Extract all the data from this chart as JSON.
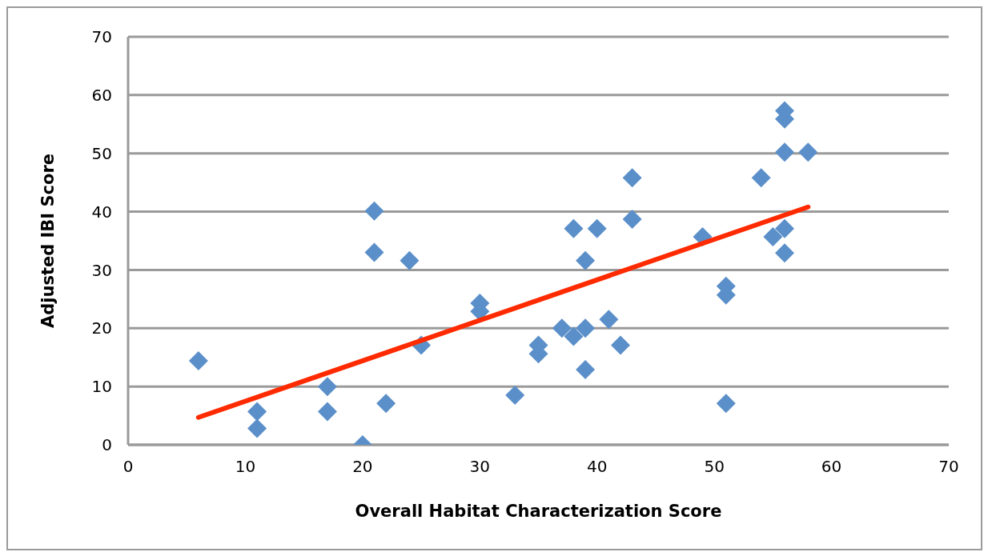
{
  "chart_data": {
    "type": "scatter",
    "xlabel": "Overall Habitat Characterization Score",
    "ylabel": "Adjusted IBI Score",
    "xlim": [
      0,
      70
    ],
    "xticks": [
      0,
      10,
      20,
      30,
      40,
      50,
      60,
      70
    ],
    "ylim": [
      0,
      70
    ],
    "yticks": [
      0,
      10,
      20,
      30,
      40,
      50,
      60,
      70
    ],
    "grid": "y",
    "series": [
      {
        "type": "scatter",
        "marker": "diamond",
        "color": "#5b8fc9",
        "x": [
          6,
          11,
          11,
          17,
          17,
          20,
          21,
          21,
          22,
          24,
          25,
          30,
          30,
          33,
          35,
          35,
          37,
          38,
          38,
          39,
          39,
          39,
          40,
          41,
          42,
          43,
          43,
          49,
          51,
          51,
          51,
          54,
          55,
          56,
          56,
          56,
          56,
          56,
          58
        ],
        "values": [
          14.4,
          5.7,
          2.8,
          10,
          5.7,
          0,
          40.1,
          33,
          7.1,
          31.6,
          17.1,
          24.3,
          22.9,
          8.5,
          17.1,
          15.6,
          20,
          18.6,
          37.1,
          31.6,
          20,
          12.9,
          37.1,
          21.5,
          17.1,
          45.8,
          38.7,
          35.7,
          27.2,
          25.7,
          7.1,
          45.8,
          35.7,
          57.3,
          55.9,
          50.2,
          37.1,
          32.9,
          50.2
        ]
      },
      {
        "type": "line",
        "marker": "none",
        "color": "#ff2a00",
        "x": [
          6,
          58
        ],
        "values": [
          4.7,
          40.8
        ]
      }
    ]
  }
}
